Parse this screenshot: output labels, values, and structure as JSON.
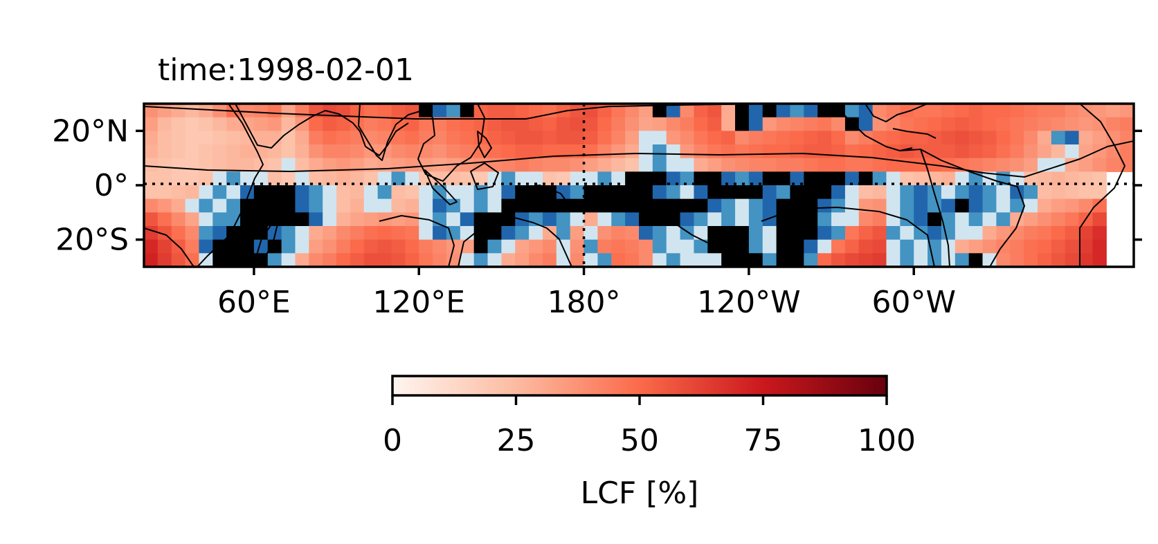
{
  "chart_data": {
    "type": "heatmap",
    "title": "time:1998-02-01",
    "projection": "PlateCarree",
    "lon_range": [
      20,
      380
    ],
    "lat_range": [
      -30,
      30
    ],
    "lon_center_dash": 180,
    "lat_center_dash": 0,
    "lat_ticks": [
      {
        "value": 20,
        "label": "20°N"
      },
      {
        "value": 0,
        "label": "0°"
      },
      {
        "value": -20,
        "label": "20°S"
      }
    ],
    "lon_ticks": [
      {
        "value": 60,
        "label": "60°E"
      },
      {
        "value": 120,
        "label": "120°E"
      },
      {
        "value": 180,
        "label": "180°"
      },
      {
        "value": 240,
        "label": "120°W"
      },
      {
        "value": 300,
        "label": "60°W"
      }
    ],
    "grid_resolution_deg": 5,
    "colorbar": {
      "label": "LCF [%]",
      "range": [
        0,
        100
      ],
      "ticks": [
        {
          "value": 0,
          "label": "0"
        },
        {
          "value": 25,
          "label": "25"
        },
        {
          "value": 50,
          "label": "50"
        },
        {
          "value": 75,
          "label": "75"
        },
        {
          "value": 100,
          "label": "100"
        }
      ],
      "colormap": "Reds",
      "colors": [
        "#fff5f0",
        "#fcbba1",
        "#fb6a4a",
        "#cb181d",
        "#67000d"
      ]
    },
    "field_legend_colors": {
      "masked_black": "#000000",
      "blue_dark": "#2166ac",
      "blue_mid": "#4393c3",
      "blue_light": "#92c5de",
      "blue_pale": "#d1e5f0"
    },
    "field": {
      "lats": [
        27.5,
        22.5,
        17.5,
        12.5,
        7.5,
        2.5,
        -2.5,
        -7.5,
        -12.5,
        -17.5,
        -22.5,
        -27.5
      ],
      "lons_start": 22.5,
      "lon_step": 5,
      "rows": [
        [
          38,
          34,
          30,
          26,
          30,
          38,
          48,
          40,
          42,
          46,
          32,
          44,
          56,
          60,
          58,
          52,
          48,
          50,
          54,
          56,
          -1,
          -2,
          -3,
          -1,
          52,
          54,
          54,
          52,
          50,
          48,
          52,
          56,
          58,
          52,
          46,
          40,
          34,
          -1,
          -2,
          40,
          52,
          56,
          30,
          -1,
          -2,
          -1,
          -2,
          -3,
          -2,
          -1,
          -1,
          -3,
          -2,
          40,
          44,
          48,
          46,
          46,
          48,
          50,
          52,
          50,
          50,
          48,
          46,
          44,
          44,
          40,
          38,
          36,
          34,
          36
        ],
        [
          34,
          26,
          22,
          20,
          22,
          26,
          30,
          32,
          34,
          36,
          26,
          36,
          50,
          54,
          52,
          48,
          44,
          46,
          50,
          52,
          46,
          44,
          48,
          50,
          52,
          54,
          56,
          56,
          54,
          52,
          56,
          58,
          56,
          50,
          44,
          38,
          32,
          34,
          40,
          44,
          50,
          54,
          30,
          -1,
          -2,
          36,
          40,
          42,
          44,
          46,
          40,
          -1,
          -2,
          38,
          42,
          46,
          48,
          50,
          52,
          54,
          52,
          50,
          48,
          46,
          44,
          42,
          40,
          38,
          36,
          38,
          42,
          44
        ],
        [
          30,
          24,
          22,
          20,
          20,
          22,
          24,
          26,
          28,
          28,
          22,
          30,
          44,
          48,
          46,
          44,
          40,
          42,
          46,
          48,
          44,
          42,
          46,
          48,
          50,
          52,
          54,
          56,
          56,
          54,
          56,
          56,
          54,
          48,
          42,
          34,
          -4,
          -4,
          36,
          40,
          46,
          50,
          52,
          40,
          44,
          46,
          48,
          50,
          52,
          54,
          50,
          40,
          44,
          48,
          50,
          52,
          52,
          54,
          56,
          58,
          56,
          54,
          50,
          46,
          40,
          30,
          -3,
          -2,
          30,
          34,
          38,
          42
        ],
        [
          28,
          24,
          22,
          20,
          22,
          24,
          26,
          28,
          28,
          26,
          22,
          28,
          38,
          42,
          42,
          40,
          36,
          36,
          40,
          42,
          40,
          38,
          42,
          44,
          46,
          48,
          50,
          52,
          52,
          50,
          50,
          50,
          48,
          42,
          36,
          30,
          -4,
          -3,
          -4,
          36,
          42,
          46,
          48,
          46,
          48,
          50,
          50,
          52,
          54,
          54,
          52,
          48,
          50,
          52,
          54,
          56,
          54,
          54,
          54,
          56,
          54,
          52,
          48,
          44,
          38,
          32,
          26,
          -4,
          32,
          36,
          40,
          44
        ],
        [
          24,
          22,
          20,
          20,
          22,
          24,
          26,
          26,
          24,
          22,
          -4,
          24,
          30,
          34,
          36,
          34,
          30,
          32,
          34,
          36,
          34,
          32,
          34,
          36,
          38,
          40,
          42,
          44,
          42,
          40,
          40,
          38,
          34,
          30,
          26,
          22,
          -4,
          -3,
          -4,
          -4,
          30,
          34,
          38,
          40,
          42,
          42,
          44,
          44,
          46,
          48,
          48,
          46,
          46,
          48,
          50,
          50,
          50,
          50,
          48,
          46,
          44,
          42,
          40,
          38,
          34,
          -4,
          -4,
          30,
          34,
          38,
          42,
          44
        ],
        [
          22,
          22,
          20,
          20,
          22,
          -4,
          -3,
          -4,
          -4,
          24,
          20,
          -4,
          24,
          26,
          28,
          26,
          22,
          -4,
          -3,
          -4,
          22,
          24,
          24,
          22,
          20,
          -4,
          -3,
          -4,
          -4,
          22,
          20,
          -4,
          -4,
          -3,
          -4,
          -1,
          -1,
          -1,
          -2,
          -3,
          -1,
          -1,
          -2,
          -3,
          -2,
          -1,
          -1,
          -2,
          -1,
          -1,
          -1,
          -2,
          -1,
          -3,
          -4,
          22,
          24,
          26,
          28,
          -4,
          -3,
          -4,
          -3,
          -4,
          24,
          26,
          28,
          26,
          24,
          22
        ],
        [
          22,
          22,
          24,
          26,
          -4,
          -3,
          -4,
          -2,
          -1,
          -1,
          -1,
          -2,
          -3,
          -4,
          24,
          26,
          -4,
          -3,
          24,
          22,
          -4,
          -3,
          -4,
          -4,
          -3,
          -4,
          -2,
          -1,
          -1,
          -1,
          -2,
          -3,
          -1,
          -1,
          -1,
          -1,
          -1,
          -2,
          -3,
          -4,
          -2,
          -1,
          -1,
          -1,
          -1,
          -2,
          -3,
          -1,
          -1,
          -1,
          -2,
          -4,
          24,
          26,
          -4,
          -3,
          -2,
          -3,
          -4,
          -3,
          -2,
          -3,
          -4,
          -2,
          -3,
          24,
          26,
          24,
          22,
          22
        ],
        [
          40,
          36,
          30,
          -4,
          -3,
          -4,
          -3,
          -1,
          -1,
          -1,
          -1,
          -2,
          -3,
          -4,
          24,
          28,
          -4,
          -4,
          26,
          28,
          -4,
          -2,
          -3,
          -4,
          -3,
          -4,
          -1,
          -1,
          -1,
          -1,
          -1,
          -1,
          -1,
          -1,
          -1,
          -1,
          -1,
          -1,
          -1,
          -1,
          -1,
          -2,
          -3,
          -4,
          -3,
          -2,
          -1,
          -1,
          -1,
          -2,
          -3,
          -4,
          36,
          38,
          -4,
          -3,
          -2,
          -3,
          -2,
          -1,
          -2,
          -3,
          -4,
          -3,
          -4,
          30,
          34,
          36,
          40,
          48
        ],
        [
          56,
          48,
          40,
          32,
          -4,
          -3,
          -3,
          -1,
          -1,
          -1,
          -1,
          -1,
          -2,
          -4,
          28,
          32,
          34,
          36,
          34,
          36,
          -4,
          -3,
          -4,
          -2,
          -1,
          -1,
          -1,
          -2,
          -3,
          -2,
          -3,
          -4,
          30,
          -4,
          -3,
          -2,
          -1,
          -1,
          -1,
          -2,
          -3,
          -4,
          -3,
          -4,
          -3,
          -2,
          -1,
          -1,
          -1,
          -3,
          -4,
          -4,
          40,
          44,
          -4,
          -3,
          -2,
          -1,
          -3,
          -4,
          -3,
          -4,
          -3,
          30,
          34,
          38,
          42,
          46,
          52,
          60
        ],
        [
          64,
          56,
          48,
          40,
          -3,
          -2,
          -1,
          -1,
          -1,
          -2,
          -3,
          -4,
          30,
          34,
          40,
          44,
          48,
          50,
          48,
          46,
          -4,
          -2,
          -3,
          -4,
          -1,
          -1,
          -2,
          -3,
          -4,
          30,
          -3,
          34,
          -4,
          38,
          42,
          40,
          -2,
          -3,
          -4,
          -3,
          -4,
          -1,
          -1,
          -1,
          -3,
          -4,
          -1,
          -1,
          -1,
          -2,
          -3,
          46,
          52,
          56,
          -3,
          -4,
          -3,
          -2,
          -3,
          -4,
          -4,
          30,
          36,
          40,
          44,
          46,
          50,
          54,
          62,
          68
        ],
        [
          70,
          62,
          54,
          44,
          -2,
          -1,
          -1,
          -1,
          -2,
          -1,
          -3,
          -4,
          34,
          38,
          44,
          50,
          54,
          56,
          54,
          50,
          44,
          40,
          36,
          34,
          -1,
          -3,
          -4,
          32,
          36,
          40,
          -4,
          38,
          -3,
          44,
          46,
          44,
          40,
          -3,
          -4,
          -4,
          -3,
          -1,
          -1,
          -1,
          -3,
          -4,
          -1,
          -1,
          -2,
          -4,
          46,
          52,
          58,
          60,
          -4,
          -3,
          -4,
          -3,
          -4,
          30,
          34,
          38,
          42,
          44,
          48,
          50,
          54,
          58,
          64,
          70
        ],
        [
          72,
          64,
          56,
          48,
          -4,
          -1,
          -1,
          -1,
          -1,
          -3,
          -4,
          30,
          40,
          44,
          50,
          54,
          58,
          58,
          56,
          52,
          46,
          42,
          38,
          -4,
          -3,
          -4,
          30,
          34,
          40,
          44,
          -4,
          40,
          -4,
          -3,
          48,
          46,
          40,
          -4,
          -3,
          -4,
          -4,
          -4,
          -1,
          -1,
          -1,
          -3,
          -1,
          -1,
          -3,
          50,
          56,
          60,
          62,
          64,
          -4,
          -3,
          -4,
          -3,
          -4,
          -3,
          -1,
          -4,
          40,
          44,
          48,
          52,
          56,
          60,
          66,
          70
        ]
      ]
    }
  }
}
